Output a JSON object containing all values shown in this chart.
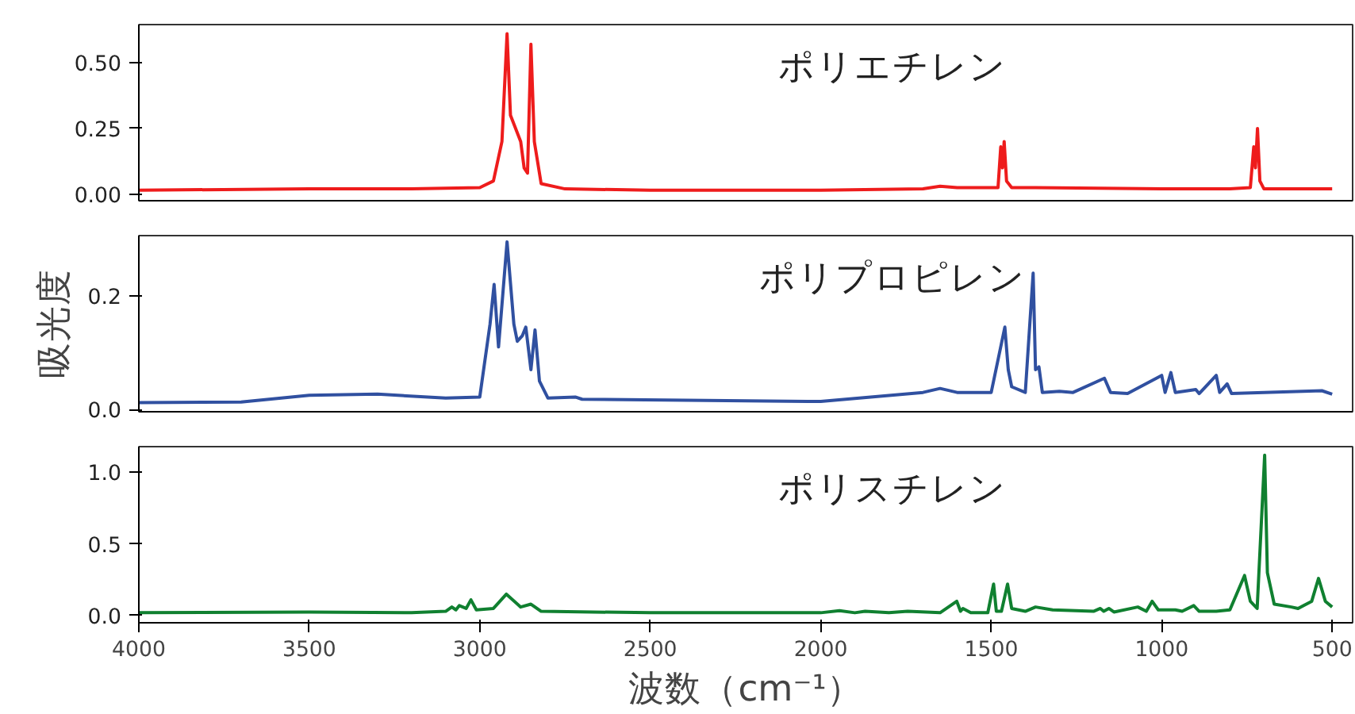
{
  "chart_data": [
    {
      "type": "line",
      "title": "ポリエチレン",
      "tick_labels": "y",
      "xlim": [
        4000,
        440
      ],
      "ylim": [
        -0.025,
        0.645
      ],
      "yticks": [
        {
          "value": 0,
          "label": "0.00"
        },
        {
          "value": 0.25,
          "label": "0.25"
        },
        {
          "value": 0.5,
          "label": "0.50"
        }
      ],
      "grid": false,
      "series": [
        {
          "color": "#ee1c1c",
          "x": [
            4000,
            3500,
            3200,
            3000,
            2960,
            2935,
            2920,
            2910,
            2880,
            2870,
            2860,
            2850,
            2840,
            2820,
            2750,
            2500,
            2000,
            1700,
            1650,
            1600,
            1480,
            1472,
            1467,
            1462,
            1455,
            1440,
            1370,
            1000,
            800,
            740,
            730,
            725,
            719,
            712,
            700,
            500
          ],
          "values": [
            0.015,
            0.02,
            0.02,
            0.025,
            0.05,
            0.2,
            0.61,
            0.3,
            0.2,
            0.1,
            0.08,
            0.57,
            0.2,
            0.04,
            0.02,
            0.015,
            0.015,
            0.02,
            0.03,
            0.025,
            0.025,
            0.18,
            0.1,
            0.2,
            0.05,
            0.025,
            0.025,
            0.02,
            0.02,
            0.025,
            0.18,
            0.1,
            0.25,
            0.05,
            0.02,
            0.02
          ]
        }
      ]
    },
    {
      "type": "line",
      "title": "ポリプロピレン",
      "ylabel": "吸光度",
      "tick_labels": "y",
      "xlim": [
        4000,
        440
      ],
      "ylim": [
        -0.004,
        0.306
      ],
      "yticks": [
        {
          "value": 0,
          "label": "0.0"
        },
        {
          "value": 0.2,
          "label": "0.2"
        }
      ],
      "grid": false,
      "series": [
        {
          "color": "#3050a0",
          "x": [
            4000,
            3700,
            3500,
            3300,
            3100,
            3000,
            2970,
            2958,
            2945,
            2920,
            2900,
            2890,
            2875,
            2865,
            2850,
            2838,
            2825,
            2800,
            2720,
            2700,
            2000,
            1700,
            1650,
            1600,
            1500,
            1460,
            1450,
            1440,
            1400,
            1377,
            1370,
            1360,
            1350,
            1300,
            1260,
            1168,
            1150,
            1100,
            1000,
            990,
            973,
            960,
            900,
            890,
            840,
            830,
            808,
            795,
            700,
            530,
            500
          ],
          "values": [
            0.012,
            0.013,
            0.025,
            0.027,
            0.02,
            0.022,
            0.15,
            0.22,
            0.11,
            0.295,
            0.15,
            0.12,
            0.13,
            0.145,
            0.07,
            0.14,
            0.05,
            0.02,
            0.022,
            0.018,
            0.014,
            0.03,
            0.037,
            0.03,
            0.03,
            0.145,
            0.07,
            0.04,
            0.03,
            0.24,
            0.07,
            0.075,
            0.03,
            0.032,
            0.03,
            0.055,
            0.03,
            0.028,
            0.06,
            0.03,
            0.065,
            0.03,
            0.035,
            0.028,
            0.06,
            0.03,
            0.045,
            0.028,
            0.03,
            0.033,
            0.027
          ]
        }
      ]
    },
    {
      "type": "line",
      "title": "ポリスチレン",
      "xlabel": "波数（cm⁻¹）",
      "xlim": [
        4000,
        440
      ],
      "xticks": [
        4000,
        3500,
        3000,
        2500,
        2000,
        1500,
        1000,
        500
      ],
      "ylim": [
        -0.05,
        1.18
      ],
      "yticks": [
        {
          "value": 0,
          "label": "0.0"
        },
        {
          "value": 0.5,
          "label": "0.5"
        },
        {
          "value": 1,
          "label": "1.0"
        }
      ],
      "grid": false,
      "series": [
        {
          "color": "#108030",
          "x": [
            4000,
            3500,
            3200,
            3100,
            3082,
            3070,
            3060,
            3040,
            3026,
            3010,
            2960,
            2922,
            2880,
            2850,
            2820,
            2500,
            2000,
            1945,
            1900,
            1870,
            1800,
            1745,
            1650,
            1601,
            1590,
            1583,
            1560,
            1510,
            1493,
            1485,
            1470,
            1452,
            1440,
            1400,
            1370,
            1320,
            1200,
            1180,
            1170,
            1155,
            1140,
            1070,
            1045,
            1028,
            1010,
            980,
            960,
            940,
            906,
            890,
            840,
            800,
            757,
            740,
            720,
            698,
            690,
            670,
            620,
            600,
            560,
            540,
            520,
            500
          ],
          "values": [
            0.02,
            0.025,
            0.02,
            0.03,
            0.06,
            0.04,
            0.07,
            0.05,
            0.11,
            0.04,
            0.05,
            0.15,
            0.06,
            0.08,
            0.03,
            0.02,
            0.02,
            0.035,
            0.02,
            0.03,
            0.02,
            0.03,
            0.02,
            0.1,
            0.03,
            0.05,
            0.02,
            0.02,
            0.22,
            0.03,
            0.03,
            0.22,
            0.05,
            0.03,
            0.06,
            0.04,
            0.03,
            0.05,
            0.03,
            0.05,
            0.025,
            0.06,
            0.03,
            0.1,
            0.04,
            0.04,
            0.04,
            0.03,
            0.07,
            0.03,
            0.03,
            0.04,
            0.28,
            0.1,
            0.05,
            1.12,
            0.3,
            0.08,
            0.06,
            0.05,
            0.1,
            0.26,
            0.1,
            0.06
          ]
        }
      ]
    }
  ]
}
